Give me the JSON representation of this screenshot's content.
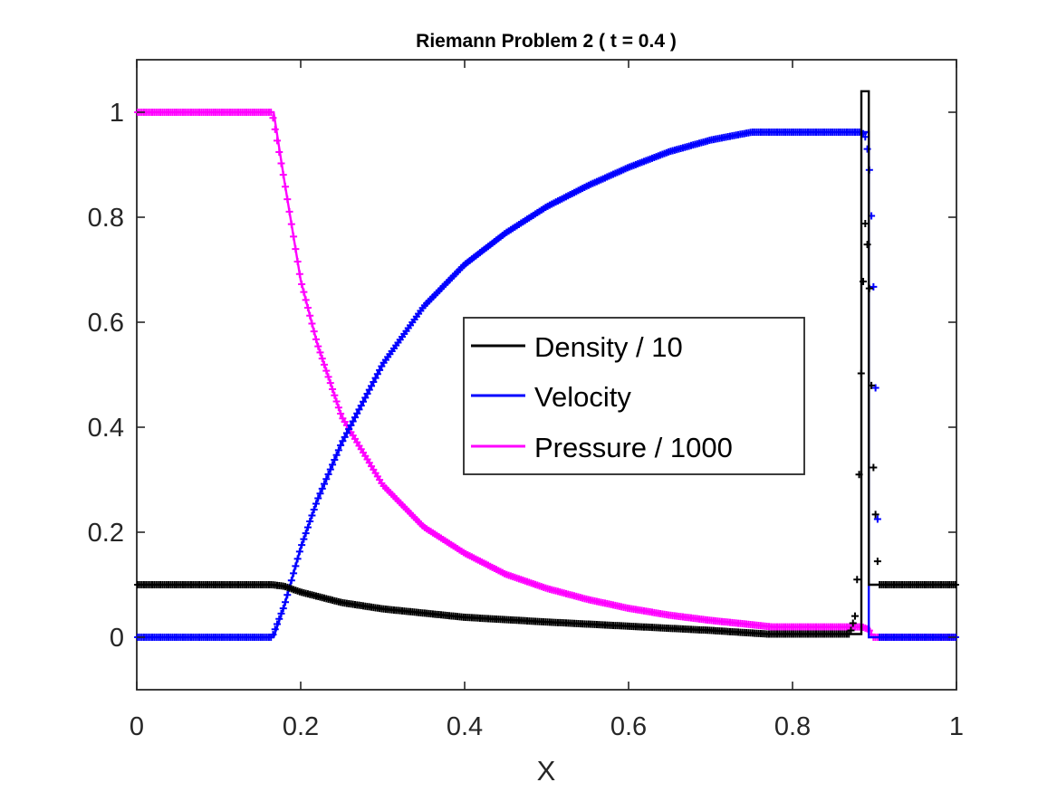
{
  "chart_data": {
    "type": "line",
    "title": "Riemann Problem 2 ( t = 0.4 )",
    "xlabel": "X",
    "ylabel": "",
    "xlim": [
      0,
      1
    ],
    "ylim": [
      -0.1,
      1.1
    ],
    "x_ticks": [
      "0",
      "0.2",
      "0.4",
      "0.6",
      "0.8",
      "1"
    ],
    "y_ticks": [
      "0",
      "0.2",
      "0.4",
      "0.6",
      "0.8",
      "1"
    ],
    "grid": false,
    "legend_position": "center-right",
    "series": [
      {
        "name": "Density / 10",
        "color": "#000000",
        "exact": {
          "x": [
            0,
            0.165,
            0.18,
            0.2,
            0.25,
            0.3,
            0.4,
            0.5,
            0.6,
            0.7,
            0.77,
            0.87,
            0.884,
            0.884,
            0.893,
            0.893,
            1.0
          ],
          "y": [
            0.1,
            0.1,
            0.097,
            0.086,
            0.066,
            0.054,
            0.038,
            0.029,
            0.021,
            0.013,
            0.006,
            0.006,
            0.006,
            1.04,
            1.04,
            0.1,
            0.1
          ]
        },
        "numerical": {
          "x": [
            0,
            0.165,
            0.18,
            0.2,
            0.25,
            0.3,
            0.4,
            0.5,
            0.6,
            0.7,
            0.77,
            0.87,
            0.878,
            0.883,
            0.888,
            0.893,
            0.898,
            0.905,
            1.0
          ],
          "y": [
            0.1,
            0.1,
            0.097,
            0.086,
            0.066,
            0.054,
            0.038,
            0.029,
            0.021,
            0.013,
            0.006,
            0.006,
            0.05,
            0.45,
            0.8,
            0.72,
            0.35,
            0.1,
            0.1
          ]
        }
      },
      {
        "name": "Velocity",
        "color": "#0000ff",
        "exact": {
          "x": [
            0,
            0.167,
            0.18,
            0.2,
            0.22,
            0.25,
            0.3,
            0.35,
            0.4,
            0.45,
            0.5,
            0.55,
            0.6,
            0.65,
            0.7,
            0.75,
            0.775,
            0.893,
            0.893,
            1.0
          ],
          "y": [
            0,
            0,
            0.06,
            0.17,
            0.26,
            0.37,
            0.52,
            0.63,
            0.71,
            0.77,
            0.82,
            0.86,
            0.895,
            0.925,
            0.947,
            0.962,
            0.962,
            0.962,
            0,
            0
          ]
        },
        "numerical": {
          "x": [
            0,
            0.165,
            0.18,
            0.2,
            0.22,
            0.25,
            0.3,
            0.35,
            0.4,
            0.45,
            0.5,
            0.55,
            0.6,
            0.65,
            0.7,
            0.75,
            0.775,
            0.885,
            0.89,
            0.895,
            0.9,
            0.903,
            0.906,
            1.0
          ],
          "y": [
            0,
            0,
            0.06,
            0.17,
            0.26,
            0.37,
            0.52,
            0.63,
            0.71,
            0.77,
            0.82,
            0.86,
            0.895,
            0.925,
            0.947,
            0.962,
            0.962,
            0.962,
            0.95,
            0.87,
            0.6,
            0.3,
            0,
            0
          ]
        }
      },
      {
        "name": "Pressure / 1000",
        "color": "#ff00ff",
        "exact": {
          "x": [
            0,
            0.167,
            0.18,
            0.2,
            0.22,
            0.25,
            0.3,
            0.35,
            0.4,
            0.45,
            0.5,
            0.55,
            0.6,
            0.65,
            0.7,
            0.75,
            0.775,
            0.893,
            0.893,
            1.0
          ],
          "y": [
            1.0,
            1.0,
            0.87,
            0.68,
            0.56,
            0.42,
            0.29,
            0.21,
            0.16,
            0.12,
            0.093,
            0.072,
            0.055,
            0.042,
            0.032,
            0.024,
            0.0196,
            0.0196,
            0.0001,
            0.0001
          ]
        },
        "numerical": {
          "x": [
            0,
            0.165,
            0.18,
            0.2,
            0.22,
            0.25,
            0.3,
            0.35,
            0.4,
            0.45,
            0.5,
            0.55,
            0.6,
            0.65,
            0.7,
            0.75,
            0.775,
            0.885,
            0.893,
            0.898,
            1.0
          ],
          "y": [
            1.0,
            1.0,
            0.87,
            0.68,
            0.56,
            0.42,
            0.29,
            0.21,
            0.16,
            0.12,
            0.093,
            0.072,
            0.055,
            0.042,
            0.032,
            0.024,
            0.0196,
            0.0196,
            0.015,
            0.0001,
            0.0001
          ]
        }
      }
    ]
  }
}
